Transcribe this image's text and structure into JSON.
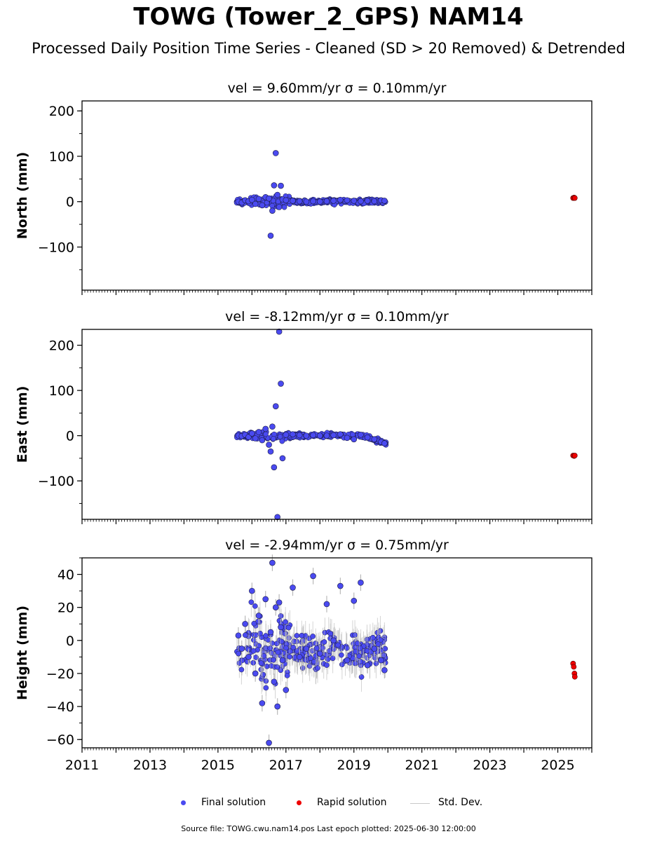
{
  "figure": {
    "title": "TOWG (Tower_2_GPS) NAM14",
    "subtitle": "Processed Daily Position Time Series - Cleaned (SD > 20 Removed) & Detrended",
    "footer": "Source file: TOWG.cwu.nam14.pos  Last epoch plotted: 2025-06-30 12:00:00"
  },
  "legend": {
    "final": "Final solution",
    "rapid": "Rapid solution",
    "std": "Std. Dev."
  },
  "colors": {
    "final": "#4a4af0",
    "final_edge": "#1a1a40",
    "rapid": "#ee0000",
    "std": "#b8b8b8",
    "axis": "#000000"
  },
  "chart_data": [
    {
      "type": "scatter",
      "panel": "north",
      "title": "vel = 9.60mm/yr   σ = 0.10mm/yr",
      "ylabel": "North (mm)",
      "xlim": [
        2011.0,
        2026.0
      ],
      "ylim": [
        -195,
        222
      ],
      "yticks": [
        -100,
        0,
        100,
        200
      ],
      "xticks": [
        2011,
        2013,
        2015,
        2017,
        2019,
        2021,
        2023,
        2025
      ],
      "series": [
        {
          "name": "Final solution",
          "x": [
            2015.6,
            2015.7,
            2015.8,
            2015.9,
            2016.0,
            2016.1,
            2016.2,
            2016.3,
            2016.4,
            2016.5,
            2016.55,
            2016.6,
            2016.65,
            2016.7,
            2016.75,
            2016.8,
            2016.85,
            2016.9,
            2017.0,
            2017.2,
            2017.4,
            2017.6,
            2017.8,
            2018.0,
            2018.2,
            2018.4,
            2018.6,
            2018.8,
            2019.0,
            2019.2,
            2019.4,
            2019.6,
            2019.8,
            2019.9
          ],
          "y": [
            0,
            -2,
            3,
            1,
            4,
            -5,
            6,
            -8,
            10,
            7,
            -75,
            -20,
            36,
            107,
            15,
            -12,
            35,
            5,
            3,
            2,
            1,
            0,
            1,
            0,
            1,
            2,
            4,
            3,
            2,
            1,
            2,
            1,
            3,
            2
          ]
        },
        {
          "name": "Rapid solution",
          "x": [
            2025.45,
            2025.48,
            2025.5
          ],
          "y": [
            8,
            9,
            8
          ]
        }
      ]
    },
    {
      "type": "scatter",
      "panel": "east",
      "title": "vel = -8.12mm/yr   σ = 0.10mm/yr",
      "ylabel": "East (mm)",
      "xlim": [
        2011.0,
        2026.0
      ],
      "ylim": [
        -185,
        235
      ],
      "yticks": [
        -100,
        0,
        100,
        200
      ],
      "xticks": [
        2011,
        2013,
        2015,
        2017,
        2019,
        2021,
        2023,
        2025
      ],
      "series": [
        {
          "name": "Final solution",
          "x": [
            2015.6,
            2015.7,
            2015.8,
            2015.9,
            2016.0,
            2016.1,
            2016.2,
            2016.3,
            2016.4,
            2016.5,
            2016.55,
            2016.6,
            2016.65,
            2016.7,
            2016.75,
            2016.8,
            2016.85,
            2016.9,
            2017.0,
            2017.2,
            2017.4,
            2017.6,
            2017.8,
            2018.0,
            2018.2,
            2018.4,
            2018.6,
            2018.8,
            2019.0,
            2019.2,
            2019.4,
            2019.6,
            2019.8,
            2019.9
          ],
          "y": [
            0,
            -1,
            2,
            -3,
            5,
            -6,
            8,
            -10,
            15,
            -20,
            -35,
            20,
            -70,
            65,
            -180,
            230,
            115,
            -50,
            2,
            3,
            1,
            0,
            1,
            0,
            0,
            1,
            3,
            -5,
            -8,
            2,
            -4,
            -8,
            -14,
            -17
          ]
        },
        {
          "name": "Rapid solution",
          "x": [
            2025.45,
            2025.48,
            2025.5
          ],
          "y": [
            -44,
            -45,
            -44
          ]
        }
      ]
    },
    {
      "type": "scatter",
      "panel": "height",
      "title": "vel = -2.94mm/yr   σ = 0.75mm/yr",
      "ylabel": "Height (mm)",
      "xlim": [
        2011.0,
        2026.0
      ],
      "ylim": [
        -65,
        50
      ],
      "yticks": [
        -60,
        -40,
        -20,
        0,
        20,
        40
      ],
      "xticks": [
        2011,
        2013,
        2015,
        2017,
        2019,
        2021,
        2023,
        2025
      ],
      "series": [
        {
          "name": "Final solution",
          "x": [
            2015.6,
            2015.7,
            2015.8,
            2015.9,
            2016.0,
            2016.1,
            2016.2,
            2016.3,
            2016.4,
            2016.5,
            2016.55,
            2016.6,
            2016.65,
            2016.7,
            2016.75,
            2016.8,
            2016.85,
            2016.9,
            2017.0,
            2017.2,
            2017.4,
            2017.6,
            2017.8,
            2018.0,
            2018.2,
            2018.4,
            2018.6,
            2018.8,
            2019.0,
            2019.2,
            2019.4,
            2019.6,
            2019.8,
            2019.9
          ],
          "y": [
            3,
            -5,
            10,
            -10,
            30,
            -20,
            15,
            -38,
            25,
            -62,
            5,
            47,
            -25,
            20,
            -40,
            23,
            8,
            -12,
            -30,
            32,
            -10,
            -5,
            39,
            -8,
            22,
            0,
            33,
            -12,
            24,
            35,
            -15,
            -5,
            -12,
            -18
          ]
        },
        {
          "name": "Rapid solution",
          "x": [
            2025.45,
            2025.47,
            2025.49,
            2025.5
          ],
          "y": [
            -14,
            -16,
            -20,
            -22
          ]
        }
      ]
    }
  ]
}
